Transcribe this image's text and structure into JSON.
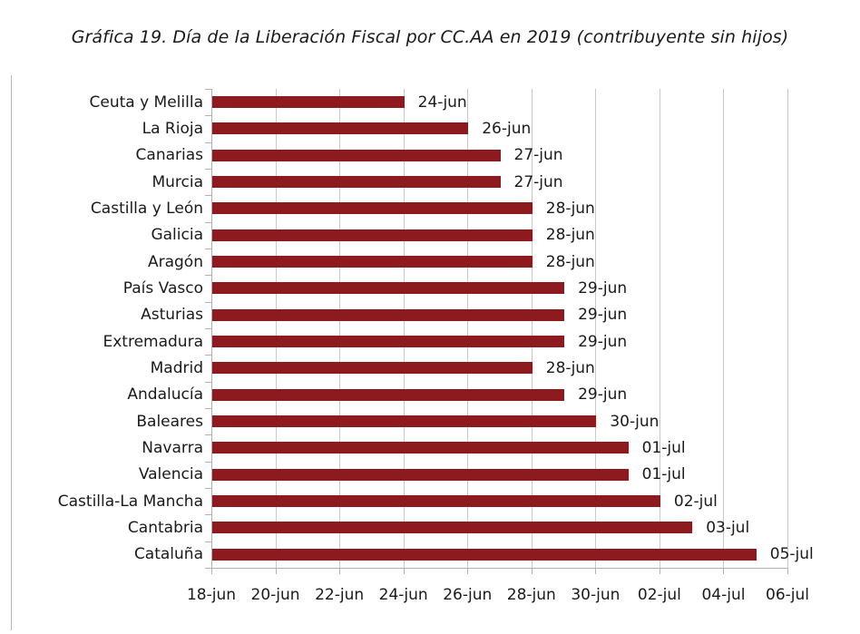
{
  "title": "Gráfica 19. Día de la Liberación Fiscal por CC.AA en 2019 (contribuyente sin hijos)",
  "colors": {
    "bar": "#8c1a1f",
    "grid": "#c9c9c9",
    "text": "#1a1a1a"
  },
  "chart_data": {
    "type": "bar",
    "orientation": "horizontal",
    "title": "Gráfica 19. Día de la Liberación Fiscal por CC.AA en 2019 (contribuyente sin hijos)",
    "xlabel": "",
    "ylabel": "",
    "categories": [
      "Ceuta y Melilla",
      "La Rioja",
      "Canarias",
      "Murcia",
      "Castilla y León",
      "Galicia",
      "Aragón",
      "País Vasco",
      "Asturias",
      "Extremadura",
      "Madrid",
      "Andalucía",
      "Baleares",
      "Navarra",
      "Valencia",
      "Castilla-La Mancha",
      "Cantabria",
      "Cataluña"
    ],
    "value_labels": [
      "24-jun",
      "26-jun",
      "27-jun",
      "27-jun",
      "28-jun",
      "28-jun",
      "28-jun",
      "29-jun",
      "29-jun",
      "29-jun",
      "28-jun",
      "29-jun",
      "30-jun",
      "01-jul",
      "01-jul",
      "02-jul",
      "03-jul",
      "05-jul"
    ],
    "values_days_after_18jun": [
      6,
      8,
      9,
      9,
      10,
      10,
      10,
      11,
      11,
      11,
      10,
      11,
      12,
      13,
      13,
      14,
      15,
      17
    ],
    "x_ticks": [
      "18-jun",
      "20-jun",
      "22-jun",
      "24-jun",
      "26-jun",
      "28-jun",
      "30-jun",
      "02-jul",
      "04-jul",
      "06-jul"
    ],
    "xlim": [
      "18-jun",
      "06-jul"
    ],
    "grid": true,
    "legend": null
  }
}
